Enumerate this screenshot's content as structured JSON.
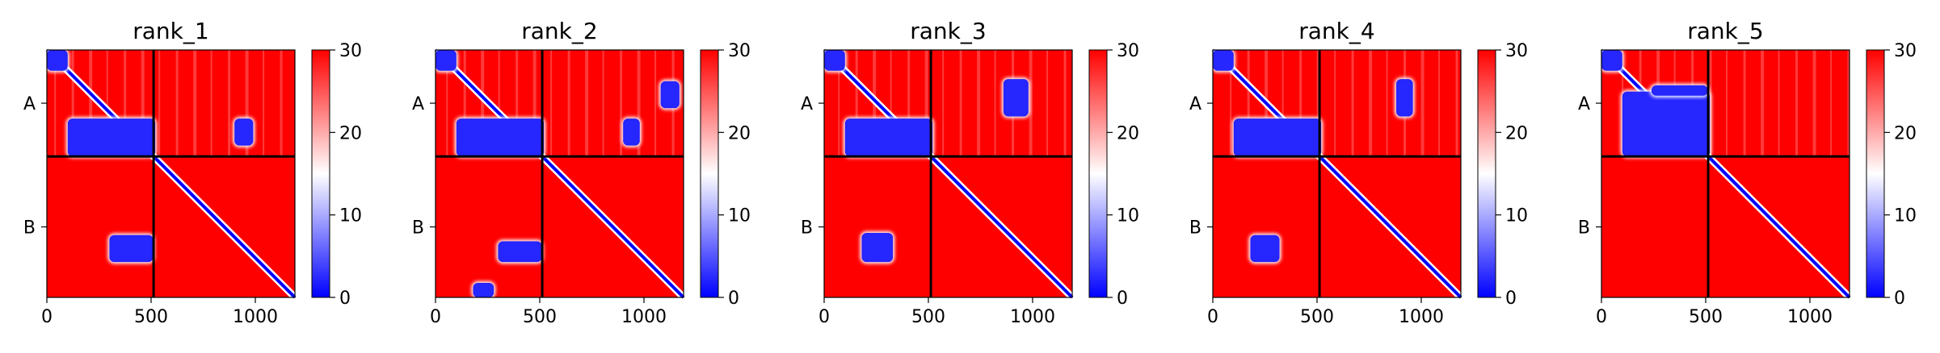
{
  "chart_data": [
    {
      "type": "heatmap",
      "title": "rank_1",
      "xlabel": "",
      "ylabel": "",
      "xlim": [
        0,
        1190
      ],
      "x_ticks": [
        0,
        500,
        1000
      ],
      "y_tick_labels": [
        "A",
        "B"
      ],
      "chain_boundary": 512,
      "colorbar": {
        "min": 0,
        "max": 30,
        "ticks": [
          0,
          10,
          20,
          30
        ]
      },
      "blue_regions": [
        {
          "x": [
            0,
            100
          ],
          "y": [
            0,
            100
          ]
        },
        {
          "x": [
            100,
            520
          ],
          "y": [
            330,
            512
          ]
        },
        {
          "x": [
            900,
            990
          ],
          "y": [
            330,
            460
          ]
        },
        {
          "x": [
            300,
            510
          ],
          "y": [
            890,
            1020
          ]
        }
      ]
    },
    {
      "type": "heatmap",
      "title": "rank_2",
      "xlabel": "",
      "ylabel": "",
      "xlim": [
        0,
        1190
      ],
      "x_ticks": [
        0,
        500,
        1000
      ],
      "y_tick_labels": [
        "A",
        "B"
      ],
      "chain_boundary": 512,
      "colorbar": {
        "min": 0,
        "max": 30,
        "ticks": [
          0,
          10,
          20,
          30
        ]
      },
      "blue_regions": [
        {
          "x": [
            0,
            100
          ],
          "y": [
            0,
            100
          ]
        },
        {
          "x": [
            100,
            520
          ],
          "y": [
            330,
            512
          ]
        },
        {
          "x": [
            900,
            980
          ],
          "y": [
            330,
            460
          ]
        },
        {
          "x": [
            1080,
            1170
          ],
          "y": [
            150,
            280
          ]
        },
        {
          "x": [
            300,
            510
          ],
          "y": [
            920,
            1020
          ]
        },
        {
          "x": [
            180,
            280
          ],
          "y": [
            1120,
            1190
          ]
        }
      ]
    },
    {
      "type": "heatmap",
      "title": "rank_3",
      "xlabel": "",
      "ylabel": "",
      "xlim": [
        0,
        1190
      ],
      "x_ticks": [
        0,
        500,
        1000
      ],
      "y_tick_labels": [
        "A",
        "B"
      ],
      "chain_boundary": 512,
      "colorbar": {
        "min": 0,
        "max": 30,
        "ticks": [
          0,
          10,
          20,
          30
        ]
      },
      "blue_regions": [
        {
          "x": [
            0,
            100
          ],
          "y": [
            0,
            100
          ]
        },
        {
          "x": [
            100,
            520
          ],
          "y": [
            330,
            512
          ]
        },
        {
          "x": [
            860,
            980
          ],
          "y": [
            140,
            320
          ]
        },
        {
          "x": [
            180,
            330
          ],
          "y": [
            880,
            1020
          ]
        }
      ]
    },
    {
      "type": "heatmap",
      "title": "rank_4",
      "xlabel": "",
      "ylabel": "",
      "xlim": [
        0,
        1190
      ],
      "x_ticks": [
        0,
        500,
        1000
      ],
      "y_tick_labels": [
        "A",
        "B"
      ],
      "chain_boundary": 512,
      "colorbar": {
        "min": 0,
        "max": 30,
        "ticks": [
          0,
          10,
          20,
          30
        ]
      },
      "blue_regions": [
        {
          "x": [
            0,
            100
          ],
          "y": [
            0,
            100
          ]
        },
        {
          "x": [
            100,
            520
          ],
          "y": [
            330,
            512
          ]
        },
        {
          "x": [
            880,
            960
          ],
          "y": [
            140,
            320
          ]
        },
        {
          "x": [
            180,
            320
          ],
          "y": [
            890,
            1020
          ]
        }
      ]
    },
    {
      "type": "heatmap",
      "title": "rank_5",
      "xlabel": "",
      "ylabel": "",
      "xlim": [
        0,
        1190
      ],
      "x_ticks": [
        0,
        500,
        1000
      ],
      "y_tick_labels": [
        "A",
        "B"
      ],
      "chain_boundary": 512,
      "colorbar": {
        "min": 0,
        "max": 30,
        "ticks": [
          0,
          10,
          20,
          30
        ]
      },
      "blue_regions": [
        {
          "x": [
            0,
            100
          ],
          "y": [
            0,
            100
          ]
        },
        {
          "x": [
            100,
            520
          ],
          "y": [
            200,
            512
          ]
        },
        {
          "x": [
            240,
            510
          ],
          "y": [
            170,
            220
          ]
        }
      ]
    }
  ],
  "colors": {
    "low": "#0000ff",
    "mid": "#ffffff",
    "high": "#ff0000",
    "boundary": "#000000"
  }
}
